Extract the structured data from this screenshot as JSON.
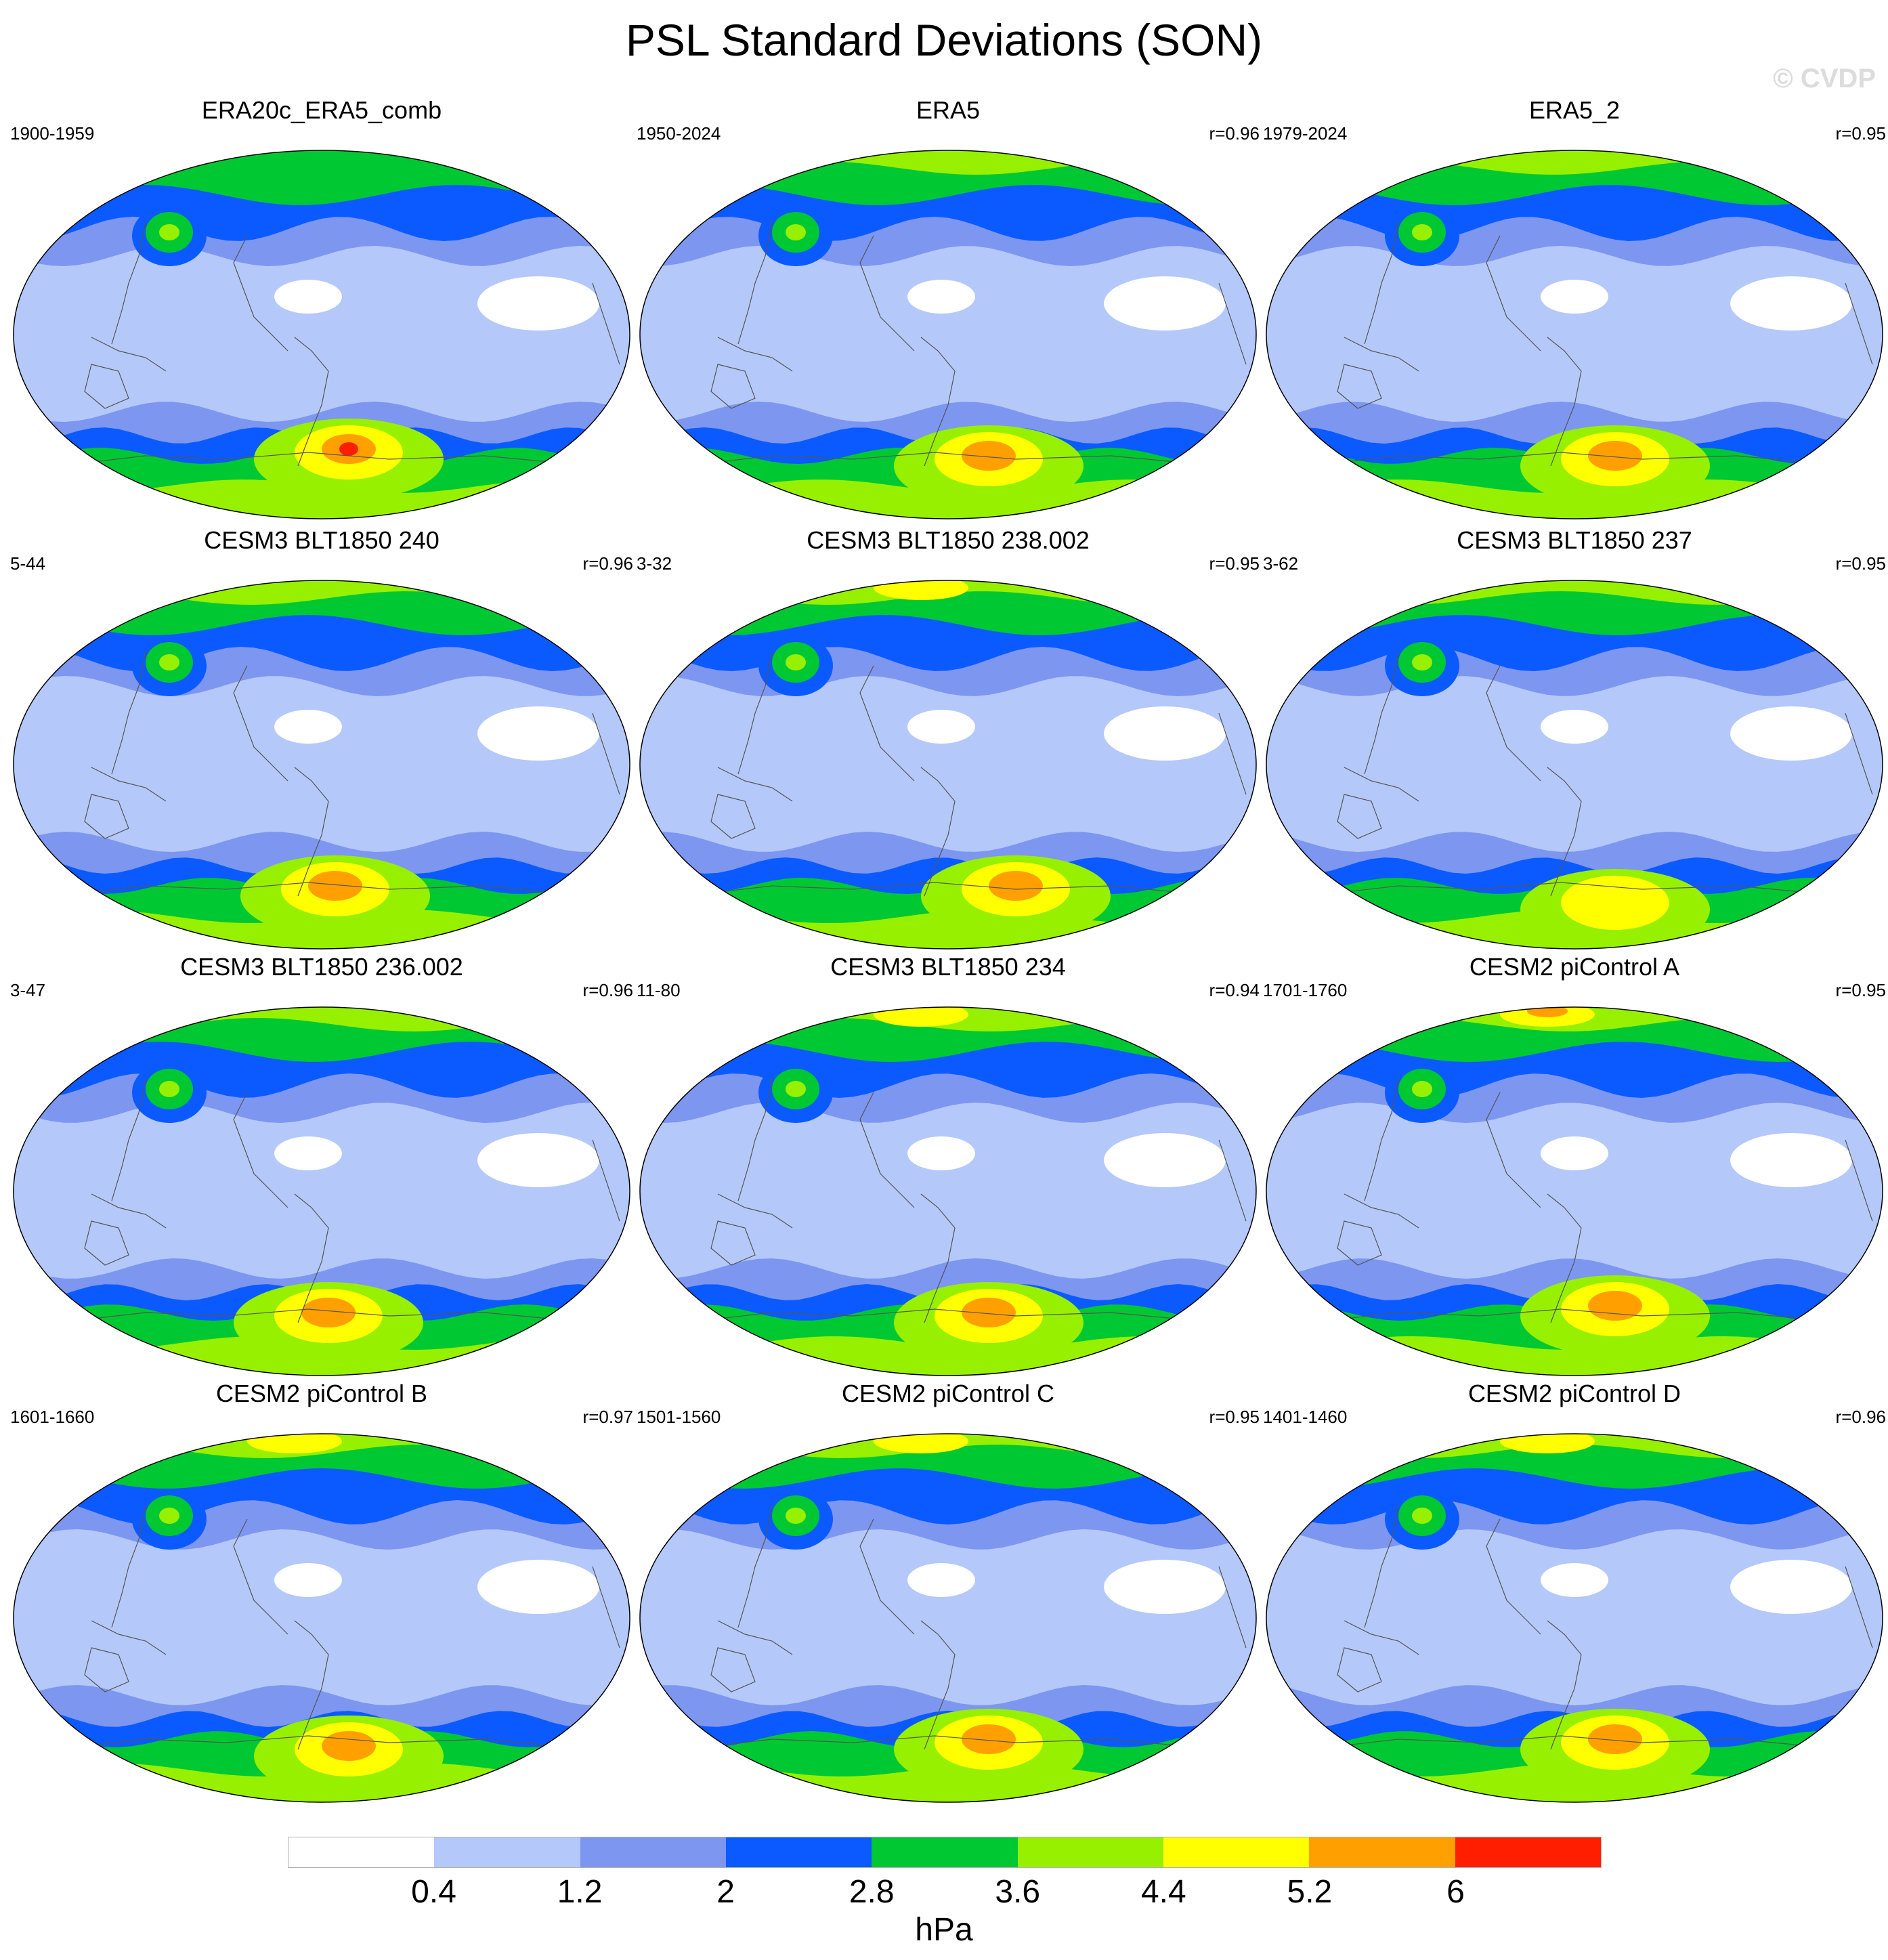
{
  "title": "PSL Standard Deviations (SON)",
  "watermark": "© CVDP",
  "colorbar": {
    "colors": [
      "#ffffff",
      "#b4c8fa",
      "#7d96f0",
      "#0a5aff",
      "#00c832",
      "#96f000",
      "#ffff00",
      "#ffa000",
      "#ff1e00"
    ],
    "labels": [
      "0.4",
      "1.2",
      "2",
      "2.8",
      "3.6",
      "4.4",
      "5.2",
      "6"
    ],
    "units": "hPa"
  },
  "panels": [
    {
      "title": "ERA20c_ERA5_comb",
      "years": "1900-1959",
      "corr": "",
      "variant": "era20c"
    },
    {
      "title": "ERA5",
      "years": "1950-2024",
      "corr": "r=0.96",
      "variant": "era5"
    },
    {
      "title": "ERA5_2",
      "years": "1979-2024",
      "corr": "r=0.95",
      "variant": "era5b"
    },
    {
      "title": "CESM3 BLT1850 240",
      "years": "5-44",
      "corr": "r=0.96",
      "variant": "m240"
    },
    {
      "title": "CESM3 BLT1850 238.002",
      "years": "3-32",
      "corr": "r=0.95",
      "variant": "m238"
    },
    {
      "title": "CESM3 BLT1850 237",
      "years": "3-62",
      "corr": "r=0.95",
      "variant": "m237"
    },
    {
      "title": "CESM3 BLT1850 236.002",
      "years": "3-47",
      "corr": "r=0.96",
      "variant": "m236"
    },
    {
      "title": "CESM3 BLT1850 234",
      "years": "11-80",
      "corr": "r=0.94",
      "variant": "m234"
    },
    {
      "title": "CESM2 piControl A",
      "years": "1701-1760",
      "corr": "r=0.95",
      "variant": "pcA"
    },
    {
      "title": "CESM2 piControl B",
      "years": "1601-1660",
      "corr": "r=0.97",
      "variant": "pcB"
    },
    {
      "title": "CESM2 piControl C",
      "years": "1501-1560",
      "corr": "r=0.95",
      "variant": "pcC"
    },
    {
      "title": "CESM2 piControl D",
      "years": "1401-1460",
      "corr": "r=0.96",
      "variant": "pcD"
    }
  ]
}
